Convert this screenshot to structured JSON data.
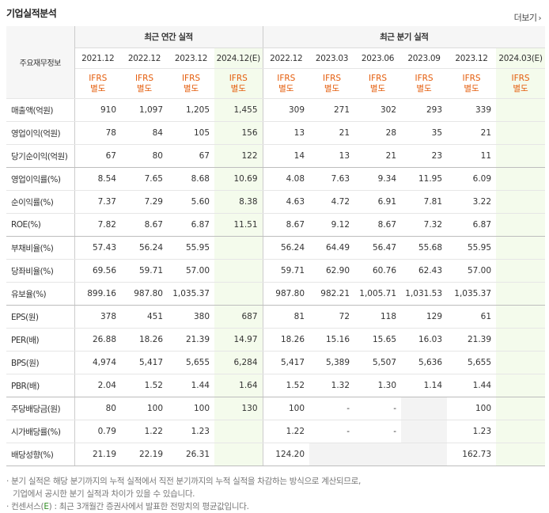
{
  "title": "기업실적분석",
  "more_label": "더보기",
  "more_arrow": "›",
  "header": {
    "row_label": "주요재무정보",
    "annual_group": "최근 연간 실적",
    "quarter_group": "최근 분기 실적",
    "periods": [
      "2021.12",
      "2022.12",
      "2023.12",
      "2024.12(E)",
      "2022.12",
      "2023.03",
      "2023.06",
      "2023.09",
      "2023.12",
      "2024.03(E)"
    ],
    "ifrs_line1": "IFRS",
    "ifrs_line2": "별도"
  },
  "rows": [
    {
      "label": "매출액(억원)",
      "values": [
        "910",
        "1,097",
        "1,205",
        "1,455",
        "309",
        "271",
        "302",
        "293",
        "339",
        ""
      ]
    },
    {
      "label": "영업이익(억원)",
      "values": [
        "78",
        "84",
        "105",
        "156",
        "13",
        "21",
        "28",
        "35",
        "21",
        ""
      ]
    },
    {
      "label": "당기순이익(억원)",
      "values": [
        "67",
        "80",
        "67",
        "122",
        "14",
        "13",
        "21",
        "23",
        "11",
        ""
      ]
    },
    {
      "label": "영업이익률(%)",
      "values": [
        "8.54",
        "7.65",
        "8.68",
        "10.69",
        "4.08",
        "7.63",
        "9.34",
        "11.95",
        "6.09",
        ""
      ]
    },
    {
      "label": "순이익률(%)",
      "values": [
        "7.37",
        "7.29",
        "5.60",
        "8.38",
        "4.63",
        "4.72",
        "6.91",
        "7.81",
        "3.22",
        ""
      ]
    },
    {
      "label": "ROE(%)",
      "values": [
        "7.82",
        "8.67",
        "6.87",
        "11.51",
        "8.67",
        "9.12",
        "8.67",
        "7.32",
        "6.87",
        ""
      ]
    },
    {
      "label": "부채비율(%)",
      "values": [
        "57.43",
        "56.24",
        "55.95",
        "",
        "56.24",
        "64.49",
        "56.47",
        "55.68",
        "55.95",
        ""
      ]
    },
    {
      "label": "당좌비율(%)",
      "values": [
        "69.56",
        "59.71",
        "57.00",
        "",
        "59.71",
        "62.90",
        "60.76",
        "62.43",
        "57.00",
        ""
      ]
    },
    {
      "label": "유보율(%)",
      "values": [
        "899.16",
        "987.80",
        "1,035.37",
        "",
        "987.80",
        "982.21",
        "1,005.71",
        "1,031.53",
        "1,035.37",
        ""
      ]
    },
    {
      "label": "EPS(원)",
      "values": [
        "378",
        "451",
        "380",
        "687",
        "81",
        "72",
        "118",
        "129",
        "61",
        ""
      ]
    },
    {
      "label": "PER(배)",
      "values": [
        "26.88",
        "18.26",
        "21.39",
        "14.97",
        "18.26",
        "15.16",
        "15.65",
        "16.03",
        "21.39",
        ""
      ]
    },
    {
      "label": "BPS(원)",
      "values": [
        "4,974",
        "5,417",
        "5,655",
        "6,284",
        "5,417",
        "5,389",
        "5,507",
        "5,636",
        "5,655",
        ""
      ]
    },
    {
      "label": "PBR(배)",
      "values": [
        "2.04",
        "1.52",
        "1.44",
        "1.64",
        "1.52",
        "1.32",
        "1.30",
        "1.14",
        "1.44",
        ""
      ]
    },
    {
      "label": "주당배당금(원)",
      "values": [
        "80",
        "100",
        "100",
        "130",
        "100",
        "-",
        "-",
        "",
        "100",
        ""
      ]
    },
    {
      "label": "시가배당률(%)",
      "values": [
        "0.79",
        "1.22",
        "1.23",
        "",
        "1.22",
        "-",
        "-",
        "",
        "1.23",
        ""
      ]
    },
    {
      "label": "배당성향(%)",
      "values": [
        "21.19",
        "22.19",
        "26.31",
        "",
        "124.20",
        "",
        "",
        "",
        "162.73",
        ""
      ]
    }
  ],
  "notes": {
    "line1": "· 분기 실적은 해당 분기까지의 누적 실적에서 직전 분기까지의 누적 실적을 차감하는 방식으로 계산되므로,",
    "line2": "기업에서 공시한 분기 실적과 차이가 있을 수 있습니다.",
    "line3_a": "· 컨센서스(",
    "line3_e": "E",
    "line3_b": ") : 최근 3개월간 증권사에서 발표한 전망치의 평균값입니다."
  },
  "colors": {
    "ifrs": "#e45c0b",
    "estimate_bg": "#f4fbec",
    "empty_bg": "#f3f3f3",
    "header_bg": "#f6f6f6"
  }
}
